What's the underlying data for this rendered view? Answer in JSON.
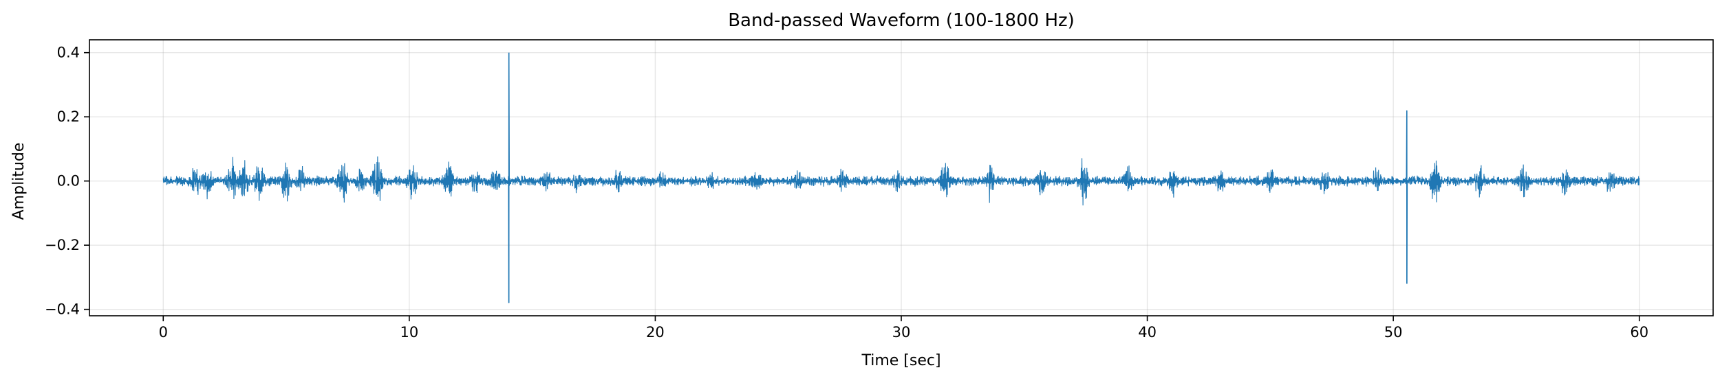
{
  "chart_data": {
    "type": "line",
    "title": "Band-passed Waveform (100-1800 Hz)",
    "xlabel": "Time [sec]",
    "ylabel": "Amplitude",
    "xlim": [
      -3,
      63
    ],
    "ylim": [
      -0.42,
      0.44
    ],
    "xticks": [
      0,
      10,
      20,
      30,
      40,
      50,
      60
    ],
    "xtick_labels": [
      "0",
      "10",
      "20",
      "30",
      "40",
      "50",
      "60"
    ],
    "yticks": [
      -0.4,
      -0.2,
      0.0,
      0.2,
      0.4
    ],
    "ytick_labels": [
      "−0.4",
      "−0.2",
      "0.0",
      "0.2",
      "0.4"
    ],
    "grid": true,
    "color": "#1f77b4",
    "series": [
      {
        "x_range": [
          0,
          60
        ],
        "baseline_amplitude": 0.015,
        "bursts": [
          {
            "t": 1.3,
            "peak": 0.07
          },
          {
            "t": 1.8,
            "peak": 0.06
          },
          {
            "t": 2.8,
            "peak": 0.09
          },
          {
            "t": 3.3,
            "peak": 0.08
          },
          {
            "t": 3.9,
            "peak": 0.07
          },
          {
            "t": 5.0,
            "peak": 0.08
          },
          {
            "t": 5.6,
            "peak": 0.06
          },
          {
            "t": 7.3,
            "peak": 0.08
          },
          {
            "t": 8.0,
            "peak": 0.05
          },
          {
            "t": 8.7,
            "peak": 0.09
          },
          {
            "t": 10.1,
            "peak": 0.08
          },
          {
            "t": 11.6,
            "peak": 0.08
          },
          {
            "t": 12.7,
            "peak": 0.05
          },
          {
            "t": 13.5,
            "peak": 0.06
          },
          {
            "t": 15.6,
            "peak": 0.04
          },
          {
            "t": 16.8,
            "peak": 0.04
          },
          {
            "t": 18.5,
            "peak": 0.05
          },
          {
            "t": 20.3,
            "peak": 0.04
          },
          {
            "t": 22.3,
            "peak": 0.04
          },
          {
            "t": 24.1,
            "peak": 0.04
          },
          {
            "t": 25.8,
            "peak": 0.05
          },
          {
            "t": 27.6,
            "peak": 0.05
          },
          {
            "t": 29.8,
            "peak": 0.04
          },
          {
            "t": 31.8,
            "peak": 0.07
          },
          {
            "t": 33.6,
            "peak": 0.07
          },
          {
            "t": 35.7,
            "peak": 0.06
          },
          {
            "t": 37.4,
            "peak": 0.09
          },
          {
            "t": 39.2,
            "peak": 0.06
          },
          {
            "t": 41.0,
            "peak": 0.06
          },
          {
            "t": 43.0,
            "peak": 0.05
          },
          {
            "t": 45.0,
            "peak": 0.05
          },
          {
            "t": 47.2,
            "peak": 0.05
          },
          {
            "t": 49.3,
            "peak": 0.06
          },
          {
            "t": 51.7,
            "peak": 0.08
          },
          {
            "t": 53.5,
            "peak": 0.06
          },
          {
            "t": 55.3,
            "peak": 0.06
          },
          {
            "t": 57.0,
            "peak": 0.06
          },
          {
            "t": 58.8,
            "peak": 0.05
          }
        ],
        "spikes": [
          {
            "t": 14.05,
            "max": 0.4,
            "min": -0.38
          },
          {
            "t": 50.55,
            "max": 0.22,
            "min": -0.32
          }
        ]
      }
    ]
  }
}
